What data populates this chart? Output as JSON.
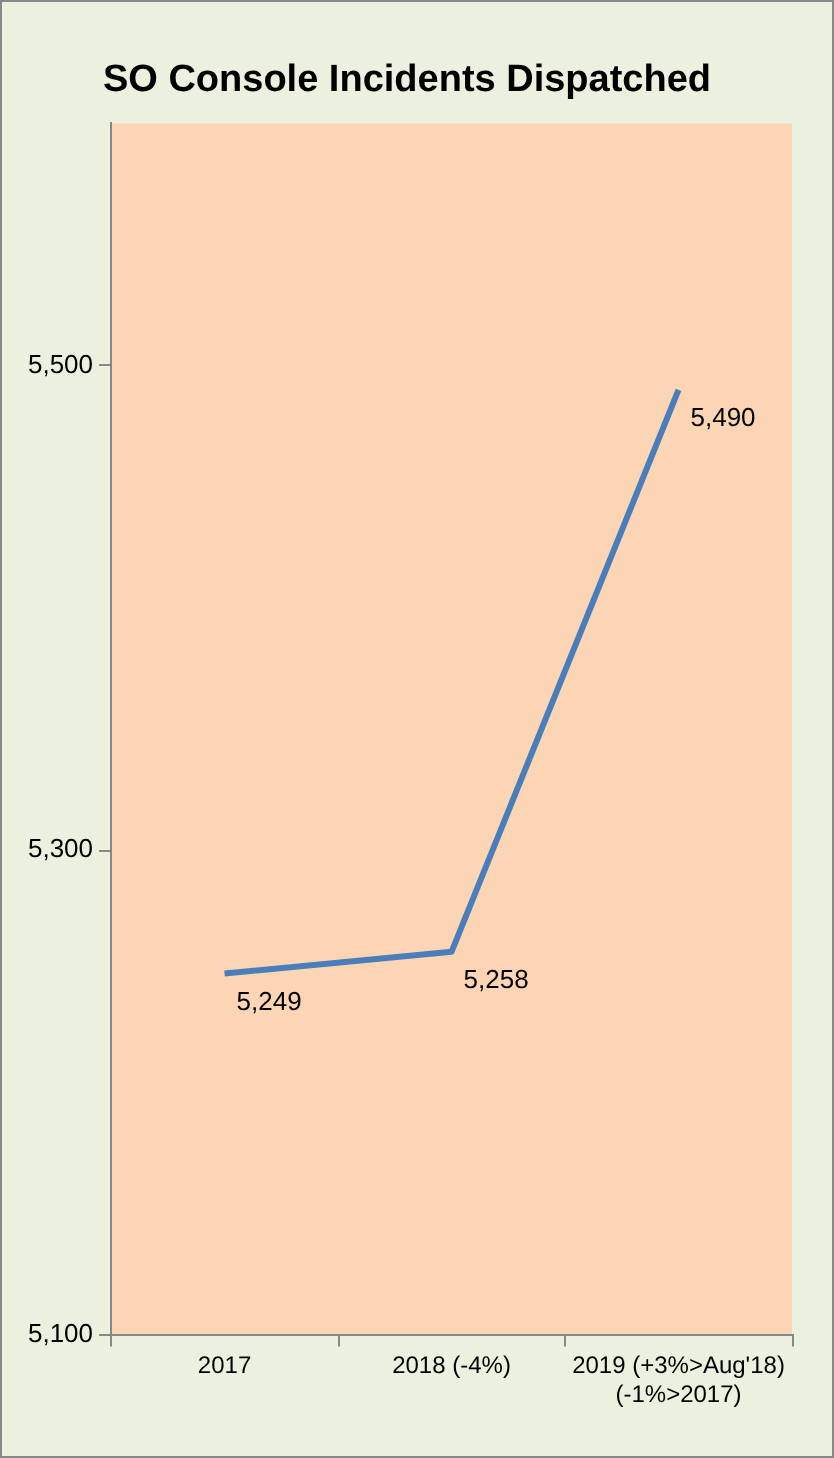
{
  "chart_data": {
    "type": "line",
    "title": "SO Console Incidents Dispatched",
    "categories": [
      "2017",
      "2018 (-4%)",
      "2019 (+3%>Aug'18)\n(-1%>2017)"
    ],
    "series": [
      {
        "color": "#4a7ebb",
        "values": [
          5249,
          5258,
          5490
        ],
        "value_labels": [
          "5,249",
          "5,258",
          "5,490"
        ]
      }
    ],
    "ylim": [
      5100,
      5600
    ],
    "yticks": [
      {
        "value": 5100,
        "label": "5,100"
      },
      {
        "value": 5300,
        "label": "5,300"
      },
      {
        "value": 5500,
        "label": "5,500"
      }
    ],
    "grid": false,
    "legend": false,
    "marker": "none"
  }
}
